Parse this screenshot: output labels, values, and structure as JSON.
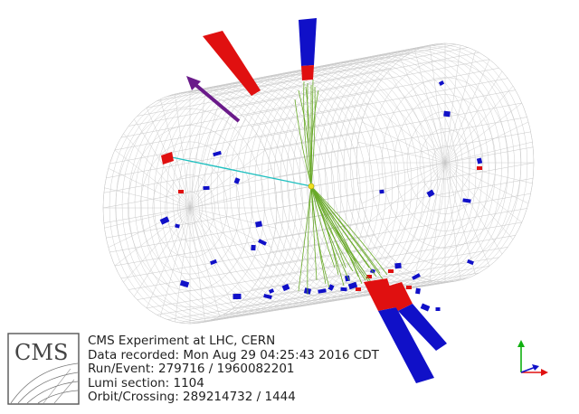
{
  "logo": {
    "text": "CMS"
  },
  "info": {
    "line1": "CMS Experiment at LHC, CERN",
    "line2": "Data recorded: Mon Aug 29 04:25:43 2016 CDT",
    "line3": "Run/Event: 279716 / 1960082201",
    "line4": "Lumi section: 1104",
    "line5": "Orbit/Crossing: 289214732 / 1444"
  },
  "colors": {
    "mesh": "#c8c8c8",
    "ecal": "#e01010",
    "hcal": "#1010c8",
    "tracks": "#6aaa2a",
    "met": "#6a1a8a",
    "electron_track": "#20c0c0",
    "vertex": "#f0e020"
  }
}
